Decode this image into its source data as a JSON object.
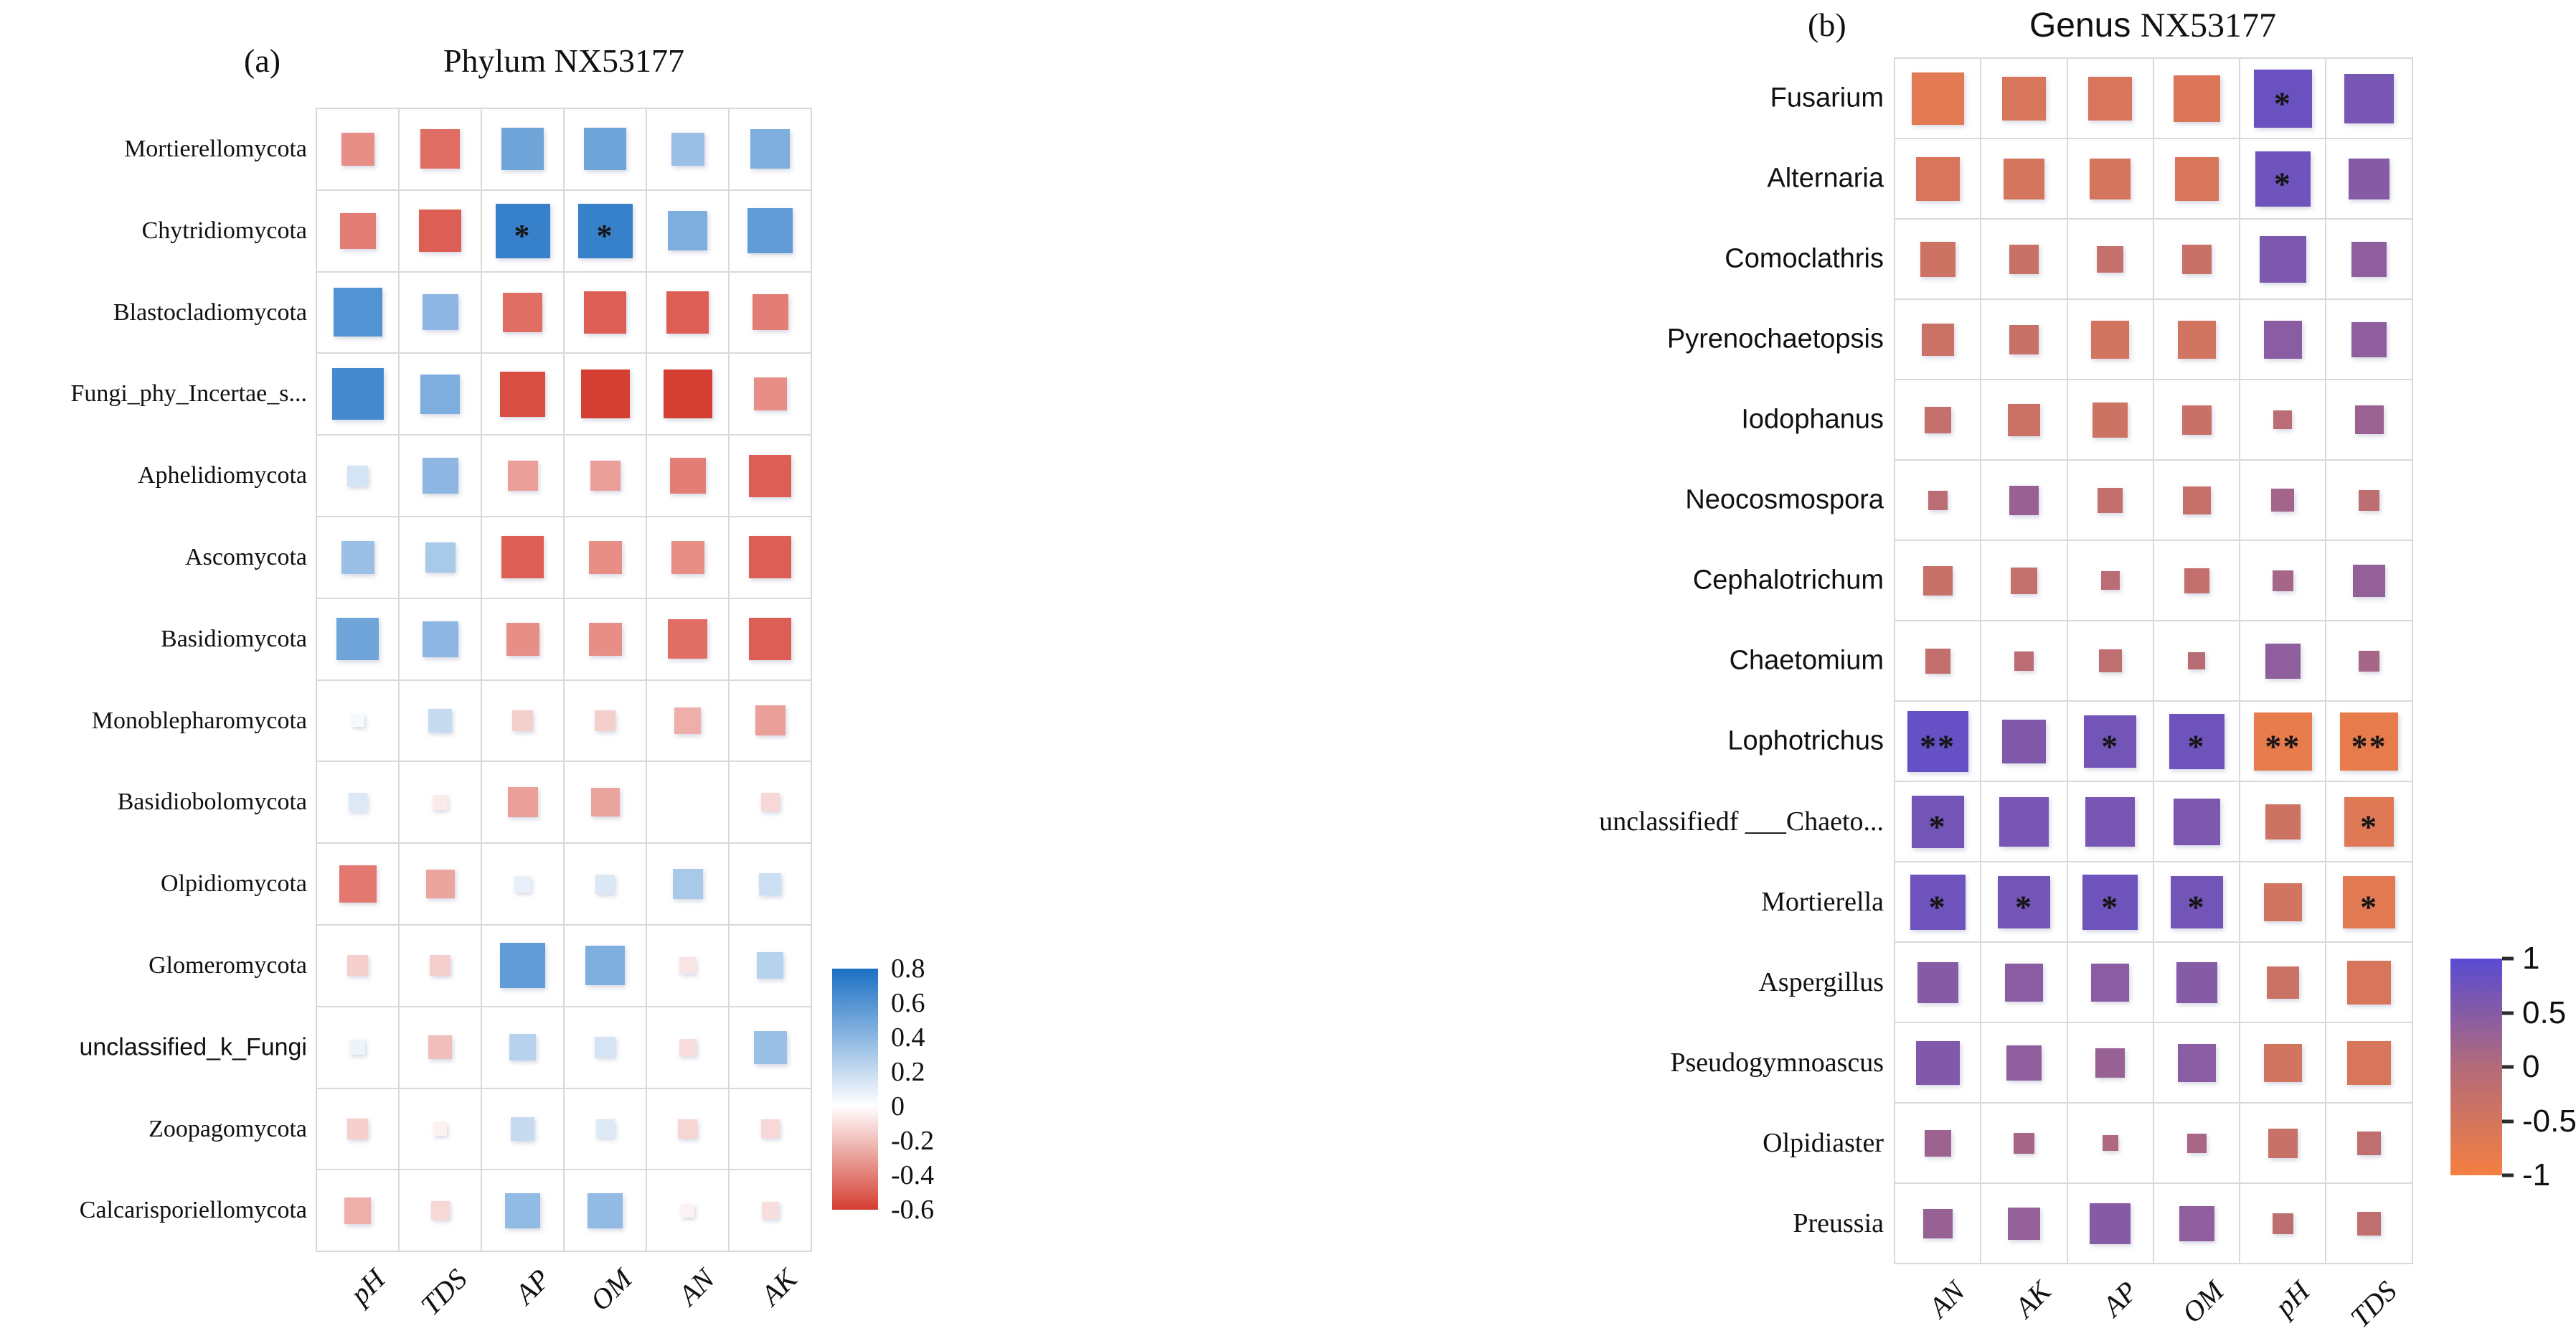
{
  "figure": {
    "background": "#ffffff"
  },
  "chart_data": [
    {
      "type": "heatmap",
      "panel": "a",
      "tag": "(a)",
      "title": "Phylum NX53177",
      "x_labels": [
        "pH",
        "TDS",
        "AP",
        "OM",
        "AN",
        "AK"
      ],
      "y_labels": [
        "Mortierellomycota",
        "Chytridiomycota",
        "Blastocladiomycota",
        "Fungi_phy_Incertae_s...",
        "Aphelidiomycota",
        "Ascomycota",
        "Basidiomycota",
        "Monoblepharomycota",
        "Basidiobolomycota",
        "Olpidiomycota",
        "Glomeromycota",
        "unclassified_k_Fungi",
        "Zoopagomycota",
        "Calcarisporiellomycota"
      ],
      "values": [
        [
          -0.35,
          -0.45,
          0.5,
          0.5,
          0.35,
          0.45
        ],
        [
          -0.4,
          -0.5,
          0.7,
          0.7,
          0.45,
          0.55
        ],
        [
          0.6,
          0.4,
          -0.45,
          -0.5,
          -0.5,
          -0.4
        ],
        [
          0.65,
          0.45,
          -0.55,
          -0.6,
          -0.6,
          -0.35
        ],
        [
          0.15,
          0.4,
          -0.3,
          -0.3,
          -0.4,
          -0.5
        ],
        [
          0.35,
          0.3,
          -0.5,
          -0.35,
          -0.35,
          -0.5
        ],
        [
          0.5,
          0.4,
          -0.35,
          -0.35,
          -0.45,
          -0.5
        ],
        [
          0.03,
          0.2,
          -0.15,
          -0.15,
          -0.25,
          -0.3
        ],
        [
          0.12,
          -0.06,
          -0.3,
          -0.28,
          0.0,
          -0.12
        ],
        [
          -0.42,
          -0.28,
          0.08,
          0.13,
          0.3,
          0.18
        ],
        [
          -0.15,
          -0.15,
          0.55,
          0.45,
          -0.08,
          0.25
        ],
        [
          0.06,
          -0.2,
          0.25,
          0.15,
          -0.1,
          0.35
        ],
        [
          -0.15,
          -0.04,
          0.2,
          0.12,
          -0.13,
          -0.12
        ],
        [
          -0.25,
          -0.12,
          0.38,
          0.38,
          -0.04,
          -0.1
        ]
      ],
      "significance": [
        [
          "",
          "",
          "",
          "",
          "",
          ""
        ],
        [
          "",
          "",
          "*",
          "*",
          "",
          ""
        ],
        [
          "",
          "",
          "",
          "",
          "",
          ""
        ],
        [
          "",
          "",
          "",
          "",
          "",
          ""
        ],
        [
          "",
          "",
          "",
          "",
          "",
          ""
        ],
        [
          "",
          "",
          "",
          "",
          "",
          ""
        ],
        [
          "",
          "",
          "",
          "",
          "",
          ""
        ],
        [
          "",
          "",
          "",
          "",
          "",
          ""
        ],
        [
          "",
          "",
          "",
          "",
          "",
          ""
        ],
        [
          "",
          "",
          "",
          "",
          "",
          ""
        ],
        [
          "",
          "",
          "",
          "",
          "",
          ""
        ],
        [
          "",
          "",
          "",
          "",
          "",
          ""
        ],
        [
          "",
          "",
          "",
          "",
          "",
          ""
        ],
        [
          "",
          "",
          "",
          "",
          "",
          ""
        ]
      ],
      "colorbar": {
        "ticks": [
          "0.8",
          "0.6",
          "0.4",
          "0.2",
          "0",
          "-0.2",
          "-0.4",
          "-0.6"
        ],
        "vmax": 0.8,
        "vmin": -0.6,
        "color_positive": "#1a6fc4",
        "color_zero": "#ffffff",
        "color_negative": "#d53e32"
      }
    },
    {
      "type": "heatmap",
      "panel": "b",
      "tag": "(b)",
      "title": "Genus NX53177",
      "x_labels": [
        "AN",
        "AK",
        "AP",
        "OM",
        "pH",
        "TDS"
      ],
      "y_labels": [
        "Fusarium",
        "Alternaria",
        "Comoclathris",
        "Pyrenochaetopsis",
        "Iodophanus",
        "Neocosmospora",
        "Cephalotrichum",
        "Chaetomium",
        "Lophotrichus",
        "unclassifiedf ___Chaeto...",
        "Mortierella",
        "Aspergillus",
        "Pseudogymnoascus",
        "Olpidiaster",
        "Preussia"
      ],
      "values": [
        [
          -0.7,
          -0.55,
          -0.55,
          -0.6,
          0.8,
          0.65
        ],
        [
          -0.55,
          -0.5,
          -0.5,
          -0.55,
          0.75,
          0.5
        ],
        [
          -0.4,
          -0.3,
          -0.25,
          -0.3,
          0.6,
          0.4
        ],
        [
          -0.35,
          -0.3,
          -0.45,
          -0.45,
          0.45,
          0.4
        ],
        [
          -0.25,
          -0.35,
          -0.4,
          -0.3,
          -0.1,
          0.28
        ],
        [
          -0.12,
          0.3,
          -0.22,
          -0.27,
          0.18,
          -0.15
        ],
        [
          -0.3,
          -0.25,
          -0.1,
          -0.22,
          0.15,
          0.35
        ],
        [
          -0.22,
          -0.12,
          -0.18,
          -0.08,
          0.4,
          0.15
        ],
        [
          0.85,
          0.55,
          0.7,
          0.75,
          -0.8,
          -0.8
        ],
        [
          0.7,
          0.65,
          0.65,
          0.6,
          -0.4,
          -0.65
        ],
        [
          0.75,
          0.7,
          0.75,
          0.7,
          -0.45,
          -0.7
        ],
        [
          0.5,
          0.45,
          0.45,
          0.5,
          -0.35,
          -0.55
        ],
        [
          0.55,
          0.4,
          0.3,
          0.45,
          -0.45,
          -0.55
        ],
        [
          0.25,
          0.15,
          0.06,
          0.12,
          -0.3,
          -0.2
        ],
        [
          0.3,
          0.35,
          0.5,
          0.4,
          -0.15,
          -0.2
        ]
      ],
      "significance": [
        [
          "",
          "",
          "",
          "",
          "*",
          ""
        ],
        [
          "",
          "",
          "",
          "",
          "*",
          ""
        ],
        [
          "",
          "",
          "",
          "",
          "",
          ""
        ],
        [
          "",
          "",
          "",
          "",
          "",
          ""
        ],
        [
          "",
          "",
          "",
          "",
          "",
          ""
        ],
        [
          "",
          "",
          "",
          "",
          "",
          ""
        ],
        [
          "",
          "",
          "",
          "",
          "",
          ""
        ],
        [
          "",
          "",
          "",
          "",
          "",
          ""
        ],
        [
          "**",
          "",
          "*",
          "*",
          "**",
          "**"
        ],
        [
          "*",
          "",
          "",
          "",
          "",
          "*"
        ],
        [
          "*",
          "*",
          "*",
          "*",
          "",
          "*"
        ],
        [
          "",
          "",
          "",
          "",
          "",
          ""
        ],
        [
          "",
          "",
          "",
          "",
          "",
          ""
        ],
        [
          "",
          "",
          "",
          "",
          "",
          ""
        ],
        [
          "",
          "",
          "",
          "",
          "",
          ""
        ]
      ],
      "colorbar": {
        "ticks": [
          "1",
          "0.5",
          "0",
          "-0.5",
          "-1"
        ],
        "vmax": 1,
        "vmin": -1,
        "color_positive": "#584bd2",
        "color_zero": "#b36b7a",
        "color_negative": "#f57f41"
      }
    }
  ]
}
